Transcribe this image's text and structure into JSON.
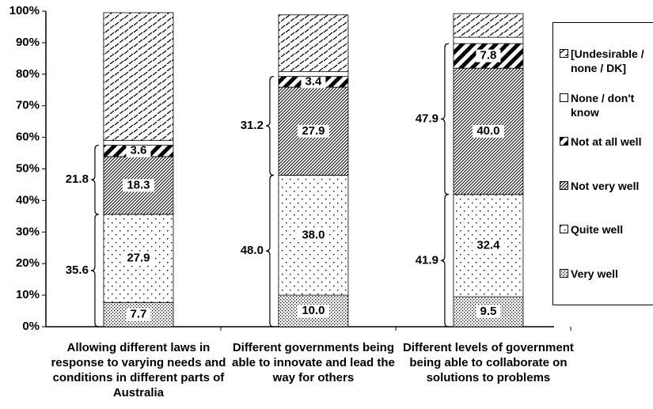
{
  "chart_data": {
    "type": "stacked-bar",
    "categories": [
      "Allowing different laws in response to varying needs and conditions in different parts of Australia",
      "Different governments being able to innovate and lead the way for others",
      "Different levels of government being able to collaborate on solutions to problems"
    ],
    "series": [
      {
        "name": "Very well",
        "pattern": "dots-dense",
        "values": [
          7.7,
          10.0,
          9.5
        ],
        "value_labels": [
          "7.7",
          "10.0",
          "9.5"
        ]
      },
      {
        "name": "Quite well",
        "pattern": "dots-sparse",
        "values": [
          27.9,
          38.0,
          32.4
        ],
        "value_labels": [
          "27.9",
          "38.0",
          "32.4"
        ]
      },
      {
        "name": "Not very well",
        "pattern": "hatch-dense",
        "values": [
          18.3,
          27.9,
          40.0
        ],
        "value_labels": [
          "18.3",
          "27.9",
          "40.0"
        ]
      },
      {
        "name": "Not at all well",
        "pattern": "stripes-bold",
        "values": [
          3.6,
          3.4,
          7.8
        ],
        "value_labels": [
          "3.6",
          "3.4",
          "7.8"
        ]
      },
      {
        "name": "None / don't know",
        "pattern": "blank",
        "values": [
          1.5,
          1.5,
          2.0
        ]
      },
      {
        "name": "[Undesirable / none / DK]",
        "pattern": "dashes",
        "values": [
          40.5,
          18.0,
          7.5
        ]
      }
    ],
    "well_totals": {
      "values": [
        35.6,
        48.0,
        41.9
      ],
      "value_labels": [
        "35.6",
        "48.0",
        "41.9"
      ]
    },
    "not_well_totals": {
      "values": [
        21.8,
        31.2,
        47.9
      ],
      "value_labels": [
        "21.8",
        "31.2",
        "47.9"
      ]
    },
    "ylim": [
      0,
      100
    ],
    "yticks": [
      {
        "value": 0,
        "label": "0%"
      },
      {
        "value": 10,
        "label": "10%"
      },
      {
        "value": 20,
        "label": "20%"
      },
      {
        "value": 30,
        "label": "30%"
      },
      {
        "value": 40,
        "label": "40%"
      },
      {
        "value": 50,
        "label": "50%"
      },
      {
        "value": 60,
        "label": "60%"
      },
      {
        "value": 70,
        "label": "70%"
      },
      {
        "value": 80,
        "label": "80%"
      },
      {
        "value": 90,
        "label": "90%"
      },
      {
        "value": 100,
        "label": "100%"
      }
    ],
    "grid": false,
    "legend": "right"
  }
}
